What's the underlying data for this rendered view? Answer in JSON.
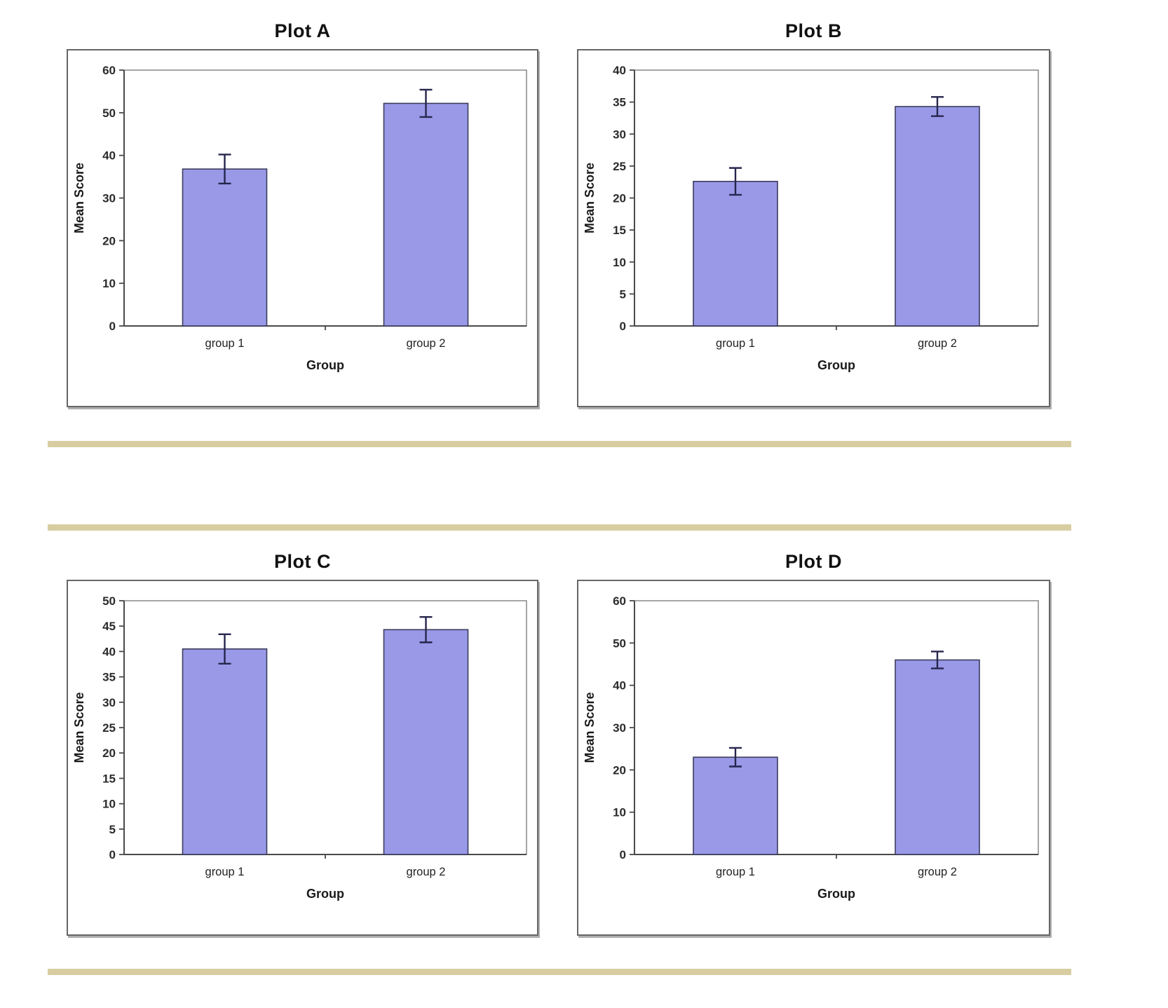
{
  "page": {
    "background": "#ffffff"
  },
  "colors": {
    "bar_fill": "#9999e8",
    "bar_stroke": "#3c3c5c",
    "error_bar": "#26264d",
    "axis_line": "#4a4a4a",
    "plot_border": "#808080",
    "panel_border": "#666666",
    "separator": "#d7cda1",
    "title_text": "#111111",
    "tick_text": "#2b2b2b",
    "label_text": "#222222"
  },
  "chart_data": [
    {
      "type": "bar",
      "title": "Plot A",
      "xlabel": "Group",
      "ylabel": "Mean Score",
      "categories": [
        "group 1",
        "group 2"
      ],
      "values": [
        36.8,
        52.2
      ],
      "errors": [
        3.4,
        3.2
      ],
      "ylim": [
        0,
        60
      ],
      "yticks": [
        0,
        10,
        20,
        30,
        40,
        50,
        60
      ],
      "grid": false,
      "legend": false
    },
    {
      "type": "bar",
      "title": "Plot B",
      "xlabel": "Group",
      "ylabel": "Mean Score",
      "categories": [
        "group 1",
        "group 2"
      ],
      "values": [
        22.6,
        34.3
      ],
      "errors": [
        2.1,
        1.5
      ],
      "ylim": [
        0,
        40
      ],
      "yticks": [
        0,
        5,
        10,
        15,
        20,
        25,
        30,
        35,
        40
      ],
      "grid": false,
      "legend": false
    },
    {
      "type": "bar",
      "title": "Plot C",
      "xlabel": "Group",
      "ylabel": "Mean Score",
      "categories": [
        "group 1",
        "group 2"
      ],
      "values": [
        40.5,
        44.3
      ],
      "errors": [
        2.9,
        2.5
      ],
      "ylim": [
        0,
        50
      ],
      "yticks": [
        0,
        5,
        10,
        15,
        20,
        25,
        30,
        35,
        40,
        45,
        50
      ],
      "grid": false,
      "legend": false
    },
    {
      "type": "bar",
      "title": "Plot D",
      "xlabel": "Group",
      "ylabel": "Mean Score",
      "categories": [
        "group 1",
        "group 2"
      ],
      "values": [
        23.0,
        46.0
      ],
      "errors": [
        2.2,
        2.0
      ],
      "ylim": [
        0,
        60
      ],
      "yticks": [
        0,
        10,
        20,
        30,
        40,
        50,
        60
      ],
      "grid": false,
      "legend": false
    }
  ]
}
